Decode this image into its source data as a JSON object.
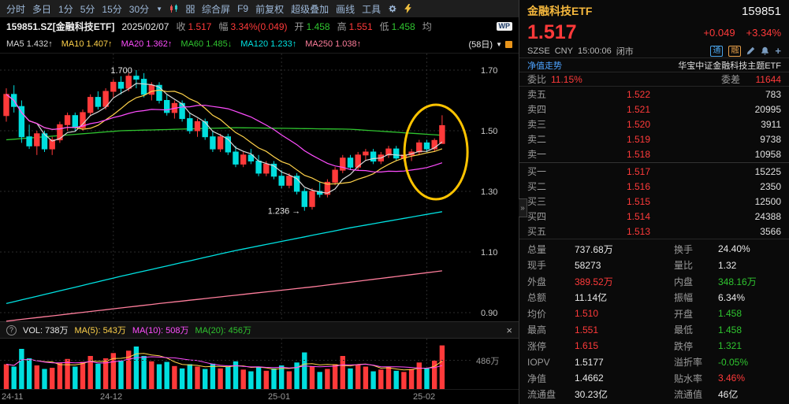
{
  "colors": {
    "up": "#ff3a3a",
    "down": "#00dede",
    "ma5": "#d8d8d8",
    "ma10": "#ffd24a",
    "ma20": "#ff4dff",
    "ma60": "#2fc42f",
    "ma120": "#00e2e2",
    "ma250": "#ff7e9c",
    "grid": "#2b2b2b",
    "highlight": "#ffc400",
    "axis_text": "#c8c8c8"
  },
  "toolbar": {
    "items": [
      "分时",
      "多日",
      "1分",
      "5分",
      "15分",
      "30分"
    ],
    "dropdown": "▼",
    "menu_items": [
      "综合屏",
      "F9",
      "前复权",
      "超级叠加",
      "画线",
      "工具"
    ]
  },
  "quote_bar": {
    "symbol": "159851.SZ[金融科技ETF]",
    "date": "2025/02/07",
    "close_label": "收",
    "close": "1.517",
    "range_label": "幅",
    "range": "3.34%(0.049)",
    "open_label": "开",
    "open": "1.458",
    "high_label": "高",
    "high": "1.551",
    "low_label": "低",
    "low": "1.458",
    "avg_label": "均",
    "wp": "WP"
  },
  "ma_bar": {
    "ma5_label": "MA5",
    "ma5": "1.432↑",
    "ma10_label": "MA10",
    "ma10": "1.407↑",
    "ma20_label": "MA20",
    "ma20": "1.362↑",
    "ma60_label": "MA60",
    "ma60": "1.485↓",
    "ma120_label": "MA120",
    "ma120": "1.233↑",
    "ma250_label": "MA250",
    "ma250": "1.038↑",
    "period": "(58日)",
    "dropdown": "▼"
  },
  "vol_header": {
    "help": "?",
    "vol_label": "VOL:",
    "vol": "738万",
    "ma5_label": "MA(5):",
    "ma5": "543万",
    "ma10_label": "MA(10):",
    "ma10": "508万",
    "ma20_label": "MA(20):",
    "ma20": "456万",
    "close": "×"
  },
  "vol_axis_label": "486万",
  "x_axis": [
    "24-11",
    "24-12",
    "25-01",
    "25-02"
  ],
  "chart_data": {
    "type": "candlestick",
    "title": "159851 金融科技ETF 日K",
    "period_days": 58,
    "ylim": [
      0.9,
      1.755
    ],
    "y_ticks": [
      1.7,
      1.5,
      1.3,
      1.1,
      0.9
    ],
    "month_ticks": [
      {
        "i": 0,
        "label": "24-11"
      },
      {
        "i": 14,
        "label": "24-12"
      },
      {
        "i": 36,
        "label": "25-01"
      },
      {
        "i": 55,
        "label": "25-02"
      }
    ],
    "candles": [
      [
        1.55,
        1.64,
        1.53,
        1.62
      ],
      [
        1.62,
        1.65,
        1.56,
        1.58
      ],
      [
        1.58,
        1.6,
        1.46,
        1.48
      ],
      [
        1.48,
        1.52,
        1.44,
        1.45
      ],
      [
        1.45,
        1.5,
        1.42,
        1.49
      ],
      [
        1.49,
        1.5,
        1.43,
        1.44
      ],
      [
        1.44,
        1.48,
        1.42,
        1.47
      ],
      [
        1.47,
        1.53,
        1.46,
        1.52
      ],
      [
        1.52,
        1.56,
        1.5,
        1.55
      ],
      [
        1.55,
        1.56,
        1.5,
        1.51
      ],
      [
        1.51,
        1.57,
        1.5,
        1.56
      ],
      [
        1.56,
        1.62,
        1.55,
        1.61
      ],
      [
        1.61,
        1.63,
        1.57,
        1.58
      ],
      [
        1.58,
        1.64,
        1.57,
        1.63
      ],
      [
        1.63,
        1.67,
        1.61,
        1.66
      ],
      [
        1.66,
        1.68,
        1.62,
        1.64
      ],
      [
        1.64,
        1.69,
        1.63,
        1.68
      ],
      [
        1.68,
        1.7,
        1.64,
        1.67
      ],
      [
        1.67,
        1.69,
        1.61,
        1.62
      ],
      [
        1.62,
        1.66,
        1.6,
        1.65
      ],
      [
        1.65,
        1.66,
        1.59,
        1.6
      ],
      [
        1.6,
        1.62,
        1.55,
        1.56
      ],
      [
        1.56,
        1.6,
        1.54,
        1.59
      ],
      [
        1.59,
        1.6,
        1.53,
        1.54
      ],
      [
        1.54,
        1.56,
        1.49,
        1.5
      ],
      [
        1.5,
        1.54,
        1.48,
        1.53
      ],
      [
        1.53,
        1.54,
        1.47,
        1.48
      ],
      [
        1.48,
        1.5,
        1.43,
        1.44
      ],
      [
        1.44,
        1.49,
        1.43,
        1.48
      ],
      [
        1.48,
        1.49,
        1.42,
        1.43
      ],
      [
        1.43,
        1.45,
        1.38,
        1.39
      ],
      [
        1.39,
        1.43,
        1.38,
        1.42
      ],
      [
        1.42,
        1.44,
        1.39,
        1.4
      ],
      [
        1.4,
        1.42,
        1.35,
        1.36
      ],
      [
        1.36,
        1.4,
        1.35,
        1.39
      ],
      [
        1.39,
        1.4,
        1.34,
        1.35
      ],
      [
        1.35,
        1.37,
        1.31,
        1.32
      ],
      [
        1.32,
        1.36,
        1.31,
        1.35
      ],
      [
        1.35,
        1.36,
        1.29,
        1.3
      ],
      [
        1.3,
        1.31,
        1.236,
        1.25
      ],
      [
        1.25,
        1.31,
        1.24,
        1.3
      ],
      [
        1.3,
        1.33,
        1.28,
        1.29
      ],
      [
        1.29,
        1.34,
        1.28,
        1.33
      ],
      [
        1.33,
        1.38,
        1.32,
        1.37
      ],
      [
        1.37,
        1.42,
        1.36,
        1.41
      ],
      [
        1.41,
        1.42,
        1.37,
        1.38
      ],
      [
        1.38,
        1.43,
        1.37,
        1.42
      ],
      [
        1.42,
        1.44,
        1.4,
        1.43
      ],
      [
        1.43,
        1.44,
        1.39,
        1.4
      ],
      [
        1.4,
        1.43,
        1.39,
        1.42
      ],
      [
        1.42,
        1.45,
        1.41,
        1.44
      ],
      [
        1.44,
        1.45,
        1.4,
        1.41
      ],
      [
        1.41,
        1.43,
        1.4,
        1.42
      ],
      [
        1.42,
        1.44,
        1.4,
        1.43
      ],
      [
        1.43,
        1.47,
        1.42,
        1.46
      ],
      [
        1.46,
        1.47,
        1.43,
        1.44
      ],
      [
        1.44,
        1.475,
        1.43,
        1.468
      ],
      [
        1.458,
        1.551,
        1.458,
        1.517
      ]
    ],
    "volumes": [
      420,
      380,
      680,
      520,
      400,
      340,
      360,
      450,
      510,
      380,
      460,
      560,
      430,
      520,
      610,
      480,
      650,
      720,
      560,
      470,
      420,
      460,
      390,
      350,
      420,
      380,
      340,
      430,
      350,
      380,
      470,
      330,
      300,
      380,
      310,
      350,
      400,
      300,
      450,
      620,
      380,
      290,
      340,
      420,
      560,
      350,
      410,
      380,
      300,
      330,
      380,
      310,
      290,
      340,
      450,
      360,
      480,
      738
    ],
    "vol_max": 800,
    "vol_axis_value": 486,
    "ma_short": [
      {
        "n": 5,
        "color": "ma5"
      },
      {
        "n": 10,
        "color": "ma10"
      },
      {
        "n": 20,
        "color": "ma20"
      }
    ],
    "ma_long": [
      {
        "name": "MA60",
        "color": "ma60",
        "points": [
          [
            0,
            1.47
          ],
          [
            15,
            1.5
          ],
          [
            30,
            1.51
          ],
          [
            45,
            1.505
          ],
          [
            57,
            1.485
          ]
        ]
      },
      {
        "name": "MA120",
        "color": "ma120",
        "points": [
          [
            0,
            0.93
          ],
          [
            15,
            1.02
          ],
          [
            30,
            1.105
          ],
          [
            45,
            1.18
          ],
          [
            57,
            1.233
          ]
        ]
      },
      {
        "name": "MA250",
        "color": "ma250",
        "points": [
          [
            0,
            0.872
          ],
          [
            20,
            0.93
          ],
          [
            40,
            0.985
          ],
          [
            57,
            1.038
          ]
        ]
      }
    ],
    "annotations": [
      {
        "i": 17,
        "price": 1.7,
        "text": "1.700",
        "dy": 4
      },
      {
        "i": 39,
        "price": 1.236,
        "text": "1.236 →",
        "dy": 4
      }
    ],
    "highlight_ellipse": {
      "i": 56.2,
      "price": 1.43,
      "rx": 40,
      "ry": 60
    }
  },
  "panel": {
    "name": "金融科技ETF",
    "code": "159851",
    "price": "1.517",
    "change": "+0.049",
    "change_pct": "+3.34%",
    "exchange": "SZSE",
    "currency": "CNY",
    "time": "15:00:06",
    "status": "闭市",
    "badge_tong": "通",
    "badge_rong": "融",
    "nav_link": "净值走势",
    "full_name": "华宝中证金融科技主题ETF",
    "weibi_label": "委比",
    "weibi_value": "11.15%",
    "weicha_label": "委差",
    "weicha_value": "11644",
    "asks": [
      {
        "label": "卖五",
        "price": "1.522",
        "vol": "783"
      },
      {
        "label": "卖四",
        "price": "1.521",
        "vol": "20995"
      },
      {
        "label": "卖三",
        "price": "1.520",
        "vol": "3911"
      },
      {
        "label": "卖二",
        "price": "1.519",
        "vol": "9738"
      },
      {
        "label": "卖一",
        "price": "1.518",
        "vol": "10958"
      }
    ],
    "bids": [
      {
        "label": "买一",
        "price": "1.517",
        "vol": "15225"
      },
      {
        "label": "买二",
        "price": "1.516",
        "vol": "2350"
      },
      {
        "label": "买三",
        "price": "1.515",
        "vol": "12500"
      },
      {
        "label": "买四",
        "price": "1.514",
        "vol": "24388"
      },
      {
        "label": "买五",
        "price": "1.513",
        "vol": "3566"
      }
    ],
    "stats": [
      {
        "l1": "总量",
        "v1": "737.68万",
        "c1": "w",
        "l2": "换手",
        "v2": "24.40%",
        "c2": "w"
      },
      {
        "l1": "现手",
        "v1": "58273",
        "c1": "w",
        "l2": "量比",
        "v2": "1.32",
        "c2": "w"
      },
      {
        "l1": "外盘",
        "v1": "389.52万",
        "c1": "r",
        "l2": "内盘",
        "v2": "348.16万",
        "c2": "g"
      },
      {
        "l1": "总额",
        "v1": "11.14亿",
        "c1": "w",
        "l2": "振幅",
        "v2": "6.34%",
        "c2": "w"
      },
      {
        "l1": "均价",
        "v1": "1.510",
        "c1": "r",
        "l2": "开盘",
        "v2": "1.458",
        "c2": "g"
      },
      {
        "l1": "最高",
        "v1": "1.551",
        "c1": "r",
        "l2": "最低",
        "v2": "1.458",
        "c2": "g"
      },
      {
        "l1": "涨停",
        "v1": "1.615",
        "c1": "r",
        "l2": "跌停",
        "v2": "1.321",
        "c2": "g"
      },
      {
        "l1": "IOPV",
        "v1": "1.5177",
        "c1": "w",
        "l2": "溢折率",
        "v2": "-0.05%",
        "c2": "g"
      },
      {
        "l1": "净值",
        "v1": "1.4662",
        "c1": "w",
        "l2": "贴水率",
        "v2": "3.46%",
        "c2": "r"
      },
      {
        "l1": "流通盘",
        "v1": "30.23亿",
        "c1": "w",
        "l2": "流通值",
        "v2": "46亿",
        "c2": "w"
      }
    ],
    "expander": "»"
  }
}
